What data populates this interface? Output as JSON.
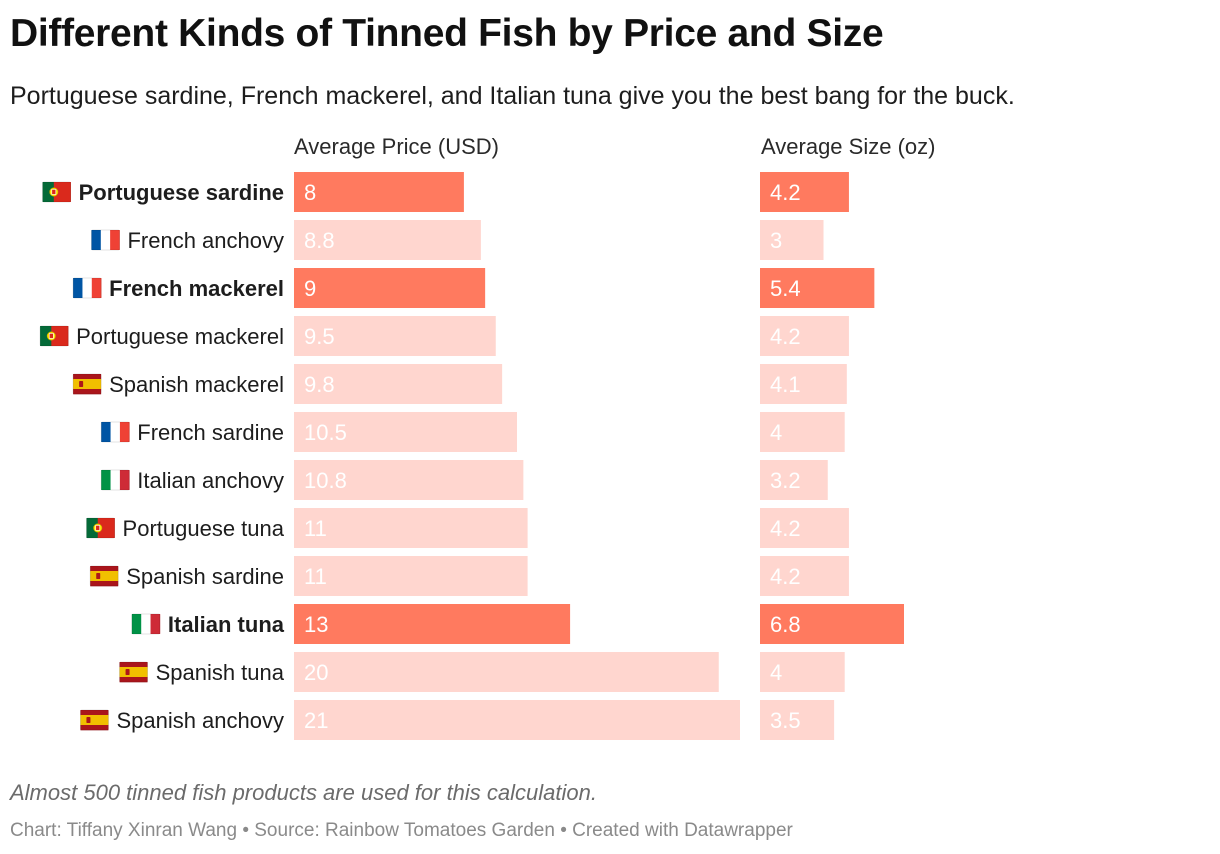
{
  "chart_data": {
    "type": "bar",
    "title": "Different Kinds of Tinned Fish by Price and Size",
    "subtitle": "Portuguese sardine, French mackerel, and Italian tuna give you the best bang for the buck.",
    "categories": [
      "Portuguese sardine",
      "French anchovy",
      "French mackerel",
      "Portuguese mackerel",
      "Spanish mackerel",
      "French sardine",
      "Italian anchovy",
      "Portuguese tuna",
      "Spanish sardine",
      "Italian tuna",
      "Spanish tuna",
      "Spanish anchovy"
    ],
    "flags": [
      "PT",
      "FR",
      "FR",
      "PT",
      "ES",
      "FR",
      "IT",
      "PT",
      "ES",
      "IT",
      "ES",
      "ES"
    ],
    "highlighted": [
      true,
      false,
      true,
      false,
      false,
      false,
      false,
      false,
      false,
      true,
      false,
      false
    ],
    "series": [
      {
        "name": "Average Price (USD)",
        "values": [
          8,
          8.8,
          9,
          9.5,
          9.8,
          10.5,
          10.8,
          11,
          11,
          13,
          20,
          21
        ],
        "labels": [
          "8",
          "8.8",
          "9",
          "9.5",
          "9.8",
          "10.5",
          "10.8",
          "11",
          "11",
          "13",
          "20",
          "21"
        ],
        "xlim": [
          0,
          21
        ]
      },
      {
        "name": "Average Size (oz)",
        "values": [
          4.2,
          3,
          5.4,
          4.2,
          4.1,
          4,
          3.2,
          4.2,
          4.2,
          6.8,
          4,
          3.5
        ],
        "labels": [
          "4.2",
          "3",
          "5.4",
          "4.2",
          "4.1",
          "4",
          "3.2",
          "4.2",
          "4.2",
          "6.8",
          "4",
          "3.5"
        ],
        "xlim": [
          0,
          6.8
        ]
      }
    ],
    "colors": {
      "highlight": "#ff7a5f",
      "normal": "#ffd6cf",
      "highlight_text": "#ffffff",
      "normal_text": "#ffffff"
    }
  },
  "footer": {
    "note": "Almost 500 tinned fish products are used for this calculation.",
    "credit": "Chart: Tiffany Xinran Wang • Source: Rainbow Tomatoes Garden • Created with Datawrapper"
  }
}
